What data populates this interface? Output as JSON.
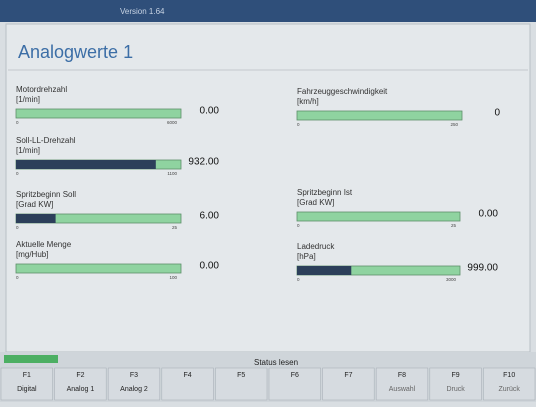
{
  "window_title": "Version 1.64",
  "title": "Analogwerte 1",
  "gauges": [
    {
      "name": "Motordrehzahl",
      "unit": "[1/min]",
      "min": "0",
      "max": "6000",
      "value": "0.00"
    },
    {
      "name": "Fahrzeuggeschwindigkeit",
      "unit": "[km/h]",
      "min": "0",
      "max": "250",
      "value": "0"
    },
    {
      "name": "Soll-LL-Drehzahl",
      "unit": "[1/min]",
      "min": "0",
      "max": "1100",
      "value": "932.00"
    },
    {
      "name": "Spritzbeginn Soll",
      "unit": "[Grad KW]",
      "min": "0",
      "max": "25",
      "value": "6.00"
    },
    {
      "name": "Spritzbeginn Ist",
      "unit": "[Grad KW]",
      "min": "0",
      "max": "25",
      "value": "0.00"
    },
    {
      "name": "Aktuelle Menge",
      "unit": "[mg/Hub]",
      "min": "0",
      "max": "100",
      "value": "0.00"
    },
    {
      "name": "Ladedruck",
      "unit": "[hPa]",
      "min": "0",
      "max": "3000",
      "value": "999.00"
    }
  ],
  "status": "Status lesen",
  "keys": [
    {
      "key": "F1",
      "label": "Digital"
    },
    {
      "key": "F2",
      "label": "Analog 1"
    },
    {
      "key": "F3",
      "label": "Analog 2"
    },
    {
      "key": "F4"
    },
    {
      "key": "F5"
    },
    {
      "key": "F6"
    },
    {
      "key": "F7"
    },
    {
      "key": "F8",
      "label": "Auswahl"
    },
    {
      "key": "F9",
      "label": "Druck"
    },
    {
      "key": "F10",
      "label": "Zurück"
    }
  ]
}
